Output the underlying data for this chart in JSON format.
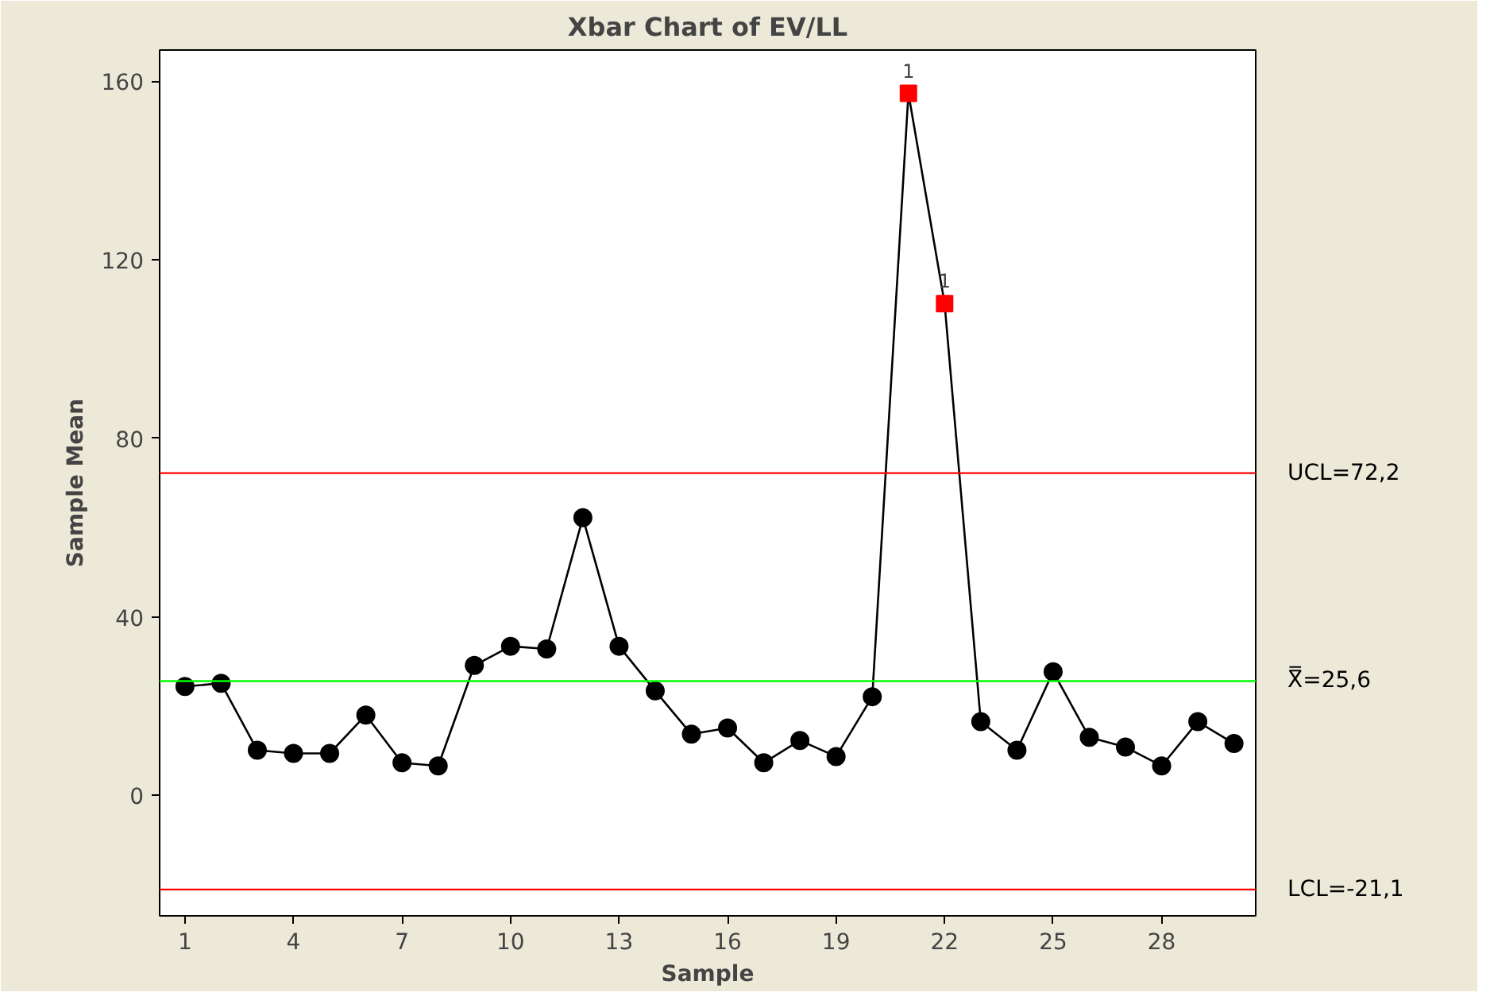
{
  "chart_data": {
    "type": "line",
    "title": "Xbar Chart of EV/LL",
    "xlabel": "Sample",
    "ylabel": "Sample Mean",
    "xlim": [
      0.3,
      30.6
    ],
    "ylim": [
      -27,
      167
    ],
    "xticks": [
      1,
      4,
      7,
      10,
      13,
      16,
      19,
      22,
      25,
      28
    ],
    "yticks": [
      0,
      40,
      80,
      120,
      160
    ],
    "grid": false,
    "series": [
      {
        "color": "#000000",
        "marker": "none",
        "x": [
          1,
          2,
          3,
          4,
          5,
          6,
          7,
          8,
          9,
          10,
          11,
          12,
          13,
          14,
          15,
          16,
          17,
          18,
          19,
          20,
          21,
          22,
          23,
          24,
          25,
          26,
          27,
          28,
          29,
          30
        ],
        "values": [
          24.4,
          25.1,
          10.1,
          9.4,
          9.4,
          18.0,
          7.3,
          6.6,
          29.1,
          33.4,
          32.8,
          62.2,
          33.4,
          23.4,
          13.7,
          15.1,
          7.3,
          12.3,
          8.7,
          22.1,
          157.3,
          110.2,
          16.5,
          10.1,
          27.7,
          13.0,
          10.8,
          6.6,
          16.5,
          11.6
        ]
      },
      {
        "type": "scatter",
        "color": "#000000",
        "marker": "circle",
        "x": [
          1,
          2,
          3,
          4,
          5,
          6,
          7,
          8,
          9,
          10,
          11,
          12,
          13,
          14,
          15,
          16,
          17,
          18,
          19,
          20,
          23,
          24,
          25,
          26,
          27,
          28,
          29,
          30
        ],
        "values": [
          24.4,
          25.1,
          10.1,
          9.4,
          9.4,
          18.0,
          7.3,
          6.6,
          29.1,
          33.4,
          32.8,
          62.2,
          33.4,
          23.4,
          13.7,
          15.1,
          7.3,
          12.3,
          8.7,
          22.1,
          16.5,
          10.1,
          27.7,
          13.0,
          10.8,
          6.6,
          16.5,
          11.6
        ]
      },
      {
        "type": "scatter",
        "color": "#ff0000",
        "marker": "square",
        "x": [
          21,
          22
        ],
        "values": [
          157.3,
          110.2
        ]
      }
    ],
    "ref_lines": [
      {
        "axis": "y",
        "value": 72.2,
        "label": "UCL=72,2",
        "color": "#ff0000"
      },
      {
        "axis": "y",
        "value": 25.6,
        "label": "X̿=25,6",
        "color": "#00ff00"
      },
      {
        "axis": "y",
        "value": -21.1,
        "label": "LCL=-21,1",
        "color": "#ff0000"
      }
    ],
    "annotations": [
      {
        "text": "1",
        "x": 21,
        "y": 157.3
      },
      {
        "text": "1",
        "x": 22,
        "y": 110.2
      }
    ]
  }
}
